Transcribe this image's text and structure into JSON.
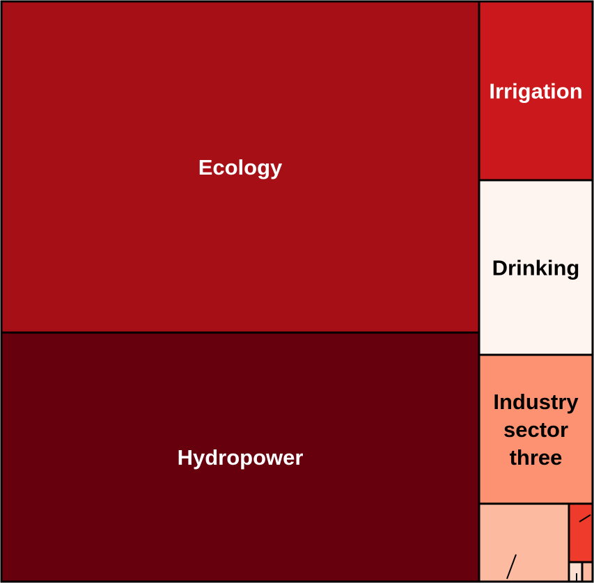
{
  "chart_data": {
    "type": "treemap",
    "title": "",
    "items": [
      {
        "label": "Ecology",
        "lines": [
          "Ecology"
        ],
        "value": 28.6,
        "color": "#a50f15",
        "text_color": "#ffffff"
      },
      {
        "label": "Hydropower",
        "lines": [
          "Hydropower"
        ],
        "value": 21.2,
        "color": "#67000d",
        "text_color": "#ffffff"
      },
      {
        "label": "Irrigation",
        "lines": [
          "Irrigation"
        ],
        "value": 2.4,
        "color": "#cb181d",
        "text_color": "#ffffff"
      },
      {
        "label": "Drinking",
        "lines": [
          "Drinking"
        ],
        "value": 2.3,
        "color": "#fff5f0",
        "text_color": "#000000"
      },
      {
        "label": "Industry sector three",
        "lines": [
          "Industry",
          "sector",
          "three"
        ],
        "value": 2.0,
        "color": "#fc9272",
        "text_color": "#000000"
      },
      {
        "label": "",
        "lines": [],
        "value": 1.05,
        "color": "#fcbba1",
        "text_color": "#000000"
      },
      {
        "label": "",
        "lines": [],
        "value": 0.3,
        "color": "#ef3b2c",
        "text_color": "#000000"
      },
      {
        "label": "",
        "lines": [],
        "value": 0.1,
        "color": "#fee0d2",
        "text_color": "#000000"
      },
      {
        "label": "",
        "lines": [],
        "value": 0.07,
        "color": "#fcbba1",
        "text_color": "#000000"
      }
    ]
  }
}
